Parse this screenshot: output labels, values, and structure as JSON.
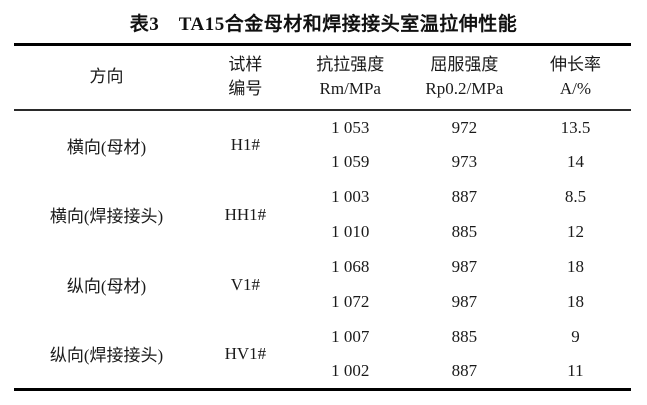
{
  "title": "表3　TA15合金母材和焊接接头室温拉伸性能",
  "table": {
    "headers": {
      "direction": "方向",
      "sample": [
        "试样",
        "编号"
      ],
      "tensile": [
        "抗拉强度",
        "Rm/MPa"
      ],
      "yield": [
        "屈服强度",
        "Rp0.2/MPa"
      ],
      "elongation": [
        "伸长率",
        "A/%"
      ]
    },
    "groups": [
      {
        "direction": "横向(母材)",
        "sample": "H1#",
        "rows": [
          {
            "rm": "1 053",
            "rp": "972",
            "a": "13.5"
          },
          {
            "rm": "1 059",
            "rp": "973",
            "a": "14"
          }
        ]
      },
      {
        "direction": "横向(焊接接头)",
        "sample": "HH1#",
        "rows": [
          {
            "rm": "1 003",
            "rp": "887",
            "a": "8.5"
          },
          {
            "rm": "1 010",
            "rp": "885",
            "a": "12"
          }
        ]
      },
      {
        "direction": "纵向(母材)",
        "sample": "V1#",
        "rows": [
          {
            "rm": "1 068",
            "rp": "987",
            "a": "18"
          },
          {
            "rm": "1 072",
            "rp": "987",
            "a": "18"
          }
        ]
      },
      {
        "direction": "纵向(焊接接头)",
        "sample": "HV1#",
        "rows": [
          {
            "rm": "1 007",
            "rp": "885",
            "a": "9"
          },
          {
            "rm": "1 002",
            "rp": "887",
            "a": "11"
          }
        ]
      }
    ]
  },
  "chart_data": {
    "type": "table",
    "title": "表3　TA15合金母材和焊接接头室温拉伸性能",
    "columns": [
      "方向",
      "试样编号",
      "抗拉强度 Rm/MPa",
      "屈服强度 Rp0.2/MPa",
      "伸长率 A/%"
    ],
    "rows": [
      [
        "横向(母材)",
        "H1#",
        "1 053",
        "972",
        "13.5"
      ],
      [
        "横向(母材)",
        "H1#",
        "1 059",
        "973",
        "14"
      ],
      [
        "横向(焊接接头)",
        "HH1#",
        "1 003",
        "887",
        "8.5"
      ],
      [
        "横向(焊接接头)",
        "HH1#",
        "1 010",
        "885",
        "12"
      ],
      [
        "纵向(母材)",
        "V1#",
        "1 068",
        "987",
        "18"
      ],
      [
        "纵向(母材)",
        "V1#",
        "1 072",
        "987",
        "18"
      ],
      [
        "纵向(焊接接头)",
        "HV1#",
        "1 007",
        "885",
        "9"
      ],
      [
        "纵向(焊接接头)",
        "HV1#",
        "1 002",
        "887",
        "11"
      ]
    ]
  },
  "colors": {
    "background": "#ffffff",
    "text": "#1a1a1a",
    "rule": "#000000"
  }
}
